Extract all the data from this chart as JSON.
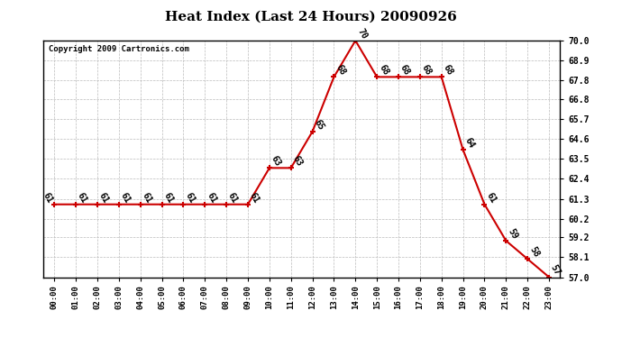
{
  "title": "Heat Index (Last 24 Hours) 20090926",
  "copyright": "Copyright 2009 Cartronics.com",
  "x_labels": [
    "00:00",
    "01:00",
    "02:00",
    "03:00",
    "04:00",
    "05:00",
    "06:00",
    "07:00",
    "08:00",
    "09:00",
    "10:00",
    "11:00",
    "12:00",
    "13:00",
    "14:00",
    "15:00",
    "16:00",
    "17:00",
    "18:00",
    "19:00",
    "20:00",
    "21:00",
    "22:00",
    "23:00"
  ],
  "y_values": [
    61,
    61,
    61,
    61,
    61,
    61,
    61,
    61,
    61,
    61,
    63,
    63,
    65,
    68,
    70,
    68,
    68,
    68,
    68,
    64,
    61,
    59,
    58,
    57
  ],
  "point_labels": [
    "61",
    "61",
    "61",
    "61",
    "61",
    "61",
    "61",
    "61",
    "61",
    "61",
    "63",
    "63",
    "65",
    "68",
    "70",
    "68",
    "68",
    "68",
    "68",
    "64",
    "61",
    "59",
    "58",
    "57"
  ],
  "ylim_min": 57.0,
  "ylim_max": 70.0,
  "yticks": [
    57.0,
    58.1,
    59.2,
    60.2,
    61.3,
    62.4,
    63.5,
    64.6,
    65.7,
    66.8,
    67.8,
    68.9,
    70.0
  ],
  "line_color": "#cc0000",
  "marker_color": "#cc0000",
  "bg_color": "#ffffff",
  "grid_color": "#bbbbbb",
  "title_fontsize": 11,
  "label_fontsize": 7,
  "copyright_fontsize": 6.5
}
